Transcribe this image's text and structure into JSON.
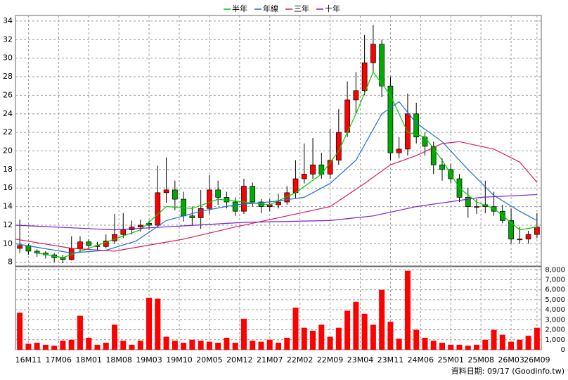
{
  "chart_data": [
    {
      "type": "candlestick",
      "x": [
        -2,
        0,
        2,
        4,
        6,
        8,
        10,
        12,
        14,
        16,
        18,
        20,
        22,
        24,
        26,
        28,
        30,
        32,
        34,
        36,
        38,
        40,
        42,
        44,
        46,
        48,
        50,
        52,
        54,
        56,
        58,
        60,
        62,
        64,
        66,
        68,
        70,
        72,
        74,
        76,
        78,
        80,
        82,
        84,
        86,
        88,
        90,
        92,
        94,
        96,
        98,
        100,
        102,
        104,
        106,
        108,
        110,
        112,
        114,
        116,
        118
      ],
      "open": [
        9.5,
        9.8,
        9.2,
        9.0,
        8.8,
        8.5,
        8.3,
        9.5,
        10.2,
        9.8,
        9.7,
        10.3,
        11.0,
        11.5,
        11.8,
        12.2,
        12.0,
        15.5,
        15.8,
        14.8,
        13.0,
        12.8,
        13.8,
        15.8,
        15.0,
        14.5,
        13.5,
        16.2,
        14.5,
        14.0,
        14.2,
        14.5,
        15.5,
        17.0,
        17.5,
        18.5,
        17.5,
        19.0,
        22.0,
        25.5,
        26.5,
        29.5,
        31.5,
        27.0,
        19.8,
        20.2,
        24.0,
        21.5,
        20.5,
        18.5,
        18.0,
        17.0,
        15.0,
        14.0,
        14.2,
        14.0,
        13.5,
        12.5,
        10.5,
        10.5,
        11.0
      ],
      "high": [
        12.6,
        10.0,
        9.4,
        9.2,
        9.0,
        8.8,
        10.8,
        10.8,
        10.5,
        10.2,
        11.0,
        13.2,
        13.3,
        12.5,
        12.6,
        12.5,
        18.4,
        19.3,
        16.8,
        15.6,
        14.0,
        15.8,
        17.4,
        16.8,
        15.6,
        15.0,
        17.0,
        16.6,
        14.8,
        14.8,
        15.4,
        16.2,
        19.0,
        20.8,
        21.4,
        19.8,
        22.4,
        24.5,
        27.5,
        28.5,
        32.5,
        33.6,
        32.0,
        28.0,
        21.5,
        26.2,
        25.2,
        22.0,
        21.0,
        19.2,
        18.6,
        17.5,
        16.0,
        14.8,
        16.8,
        15.6,
        14.2,
        13.8,
        11.8,
        11.4,
        13.3
      ],
      "low": [
        9.0,
        8.8,
        8.6,
        8.4,
        8.0,
        7.9,
        8.2,
        9.2,
        9.4,
        9.3,
        9.5,
        10.0,
        10.6,
        11.0,
        11.3,
        11.5,
        11.8,
        14.4,
        13.6,
        12.4,
        12.0,
        11.6,
        13.2,
        14.2,
        13.8,
        13.0,
        13.2,
        14.0,
        13.3,
        13.5,
        13.8,
        14.2,
        14.9,
        16.5,
        17.0,
        17.0,
        17.0,
        18.5,
        21.5,
        24.0,
        26.0,
        28.5,
        25.8,
        19.0,
        19.2,
        19.5,
        20.8,
        19.5,
        17.5,
        16.8,
        16.5,
        14.5,
        12.8,
        13.2,
        13.3,
        13.0,
        12.2,
        10.0,
        10.0,
        10.0,
        10.6
      ],
      "close": [
        9.8,
        9.2,
        9.0,
        8.8,
        8.5,
        8.3,
        9.5,
        10.2,
        9.8,
        9.7,
        10.3,
        11.0,
        11.5,
        11.8,
        12.0,
        12.0,
        15.5,
        15.8,
        14.8,
        13.0,
        12.8,
        13.8,
        15.8,
        15.0,
        14.5,
        13.5,
        16.2,
        14.5,
        14.0,
        14.2,
        14.5,
        15.5,
        17.0,
        17.5,
        18.5,
        17.5,
        19.0,
        22.0,
        25.5,
        26.5,
        29.5,
        31.5,
        27.0,
        19.8,
        20.2,
        24.0,
        21.5,
        20.5,
        18.5,
        18.0,
        17.0,
        15.0,
        14.0,
        14.0,
        14.0,
        13.5,
        12.5,
        10.5,
        10.5,
        11.0,
        11.8
      ],
      "up_color": "#ff0000",
      "down_color": "#00aa00",
      "series": [
        {
          "name": "半年",
          "color": "#00cc00",
          "x": [
            2,
            8,
            14,
            20,
            26,
            32,
            38,
            44,
            50,
            56,
            62,
            68,
            72,
            76,
            80,
            84,
            88,
            92,
            96,
            100,
            104,
            108,
            114,
            118
          ],
          "values": [
            9.0,
            8.5,
            9.5,
            10.5,
            11.5,
            14.0,
            13.8,
            14.8,
            14.5,
            14.2,
            15.5,
            17.5,
            20.0,
            24.0,
            28.5,
            26.0,
            22.0,
            21.5,
            19.0,
            16.0,
            14.5,
            13.8,
            11.5,
            11.8
          ]
        },
        {
          "name": "年線",
          "color": "#1e6fd9",
          "x": [
            -3,
            10,
            18,
            25,
            32,
            40,
            48,
            56,
            64,
            70,
            76,
            82,
            86,
            90,
            96,
            102,
            108,
            114,
            118
          ],
          "values": [
            10.0,
            9.0,
            9.3,
            10.3,
            12.5,
            13.5,
            14.2,
            14.5,
            15.0,
            16.5,
            19.0,
            24.0,
            25.3,
            23.0,
            21.0,
            18.0,
            15.2,
            13.5,
            12.5
          ]
        },
        {
          "name": "三年",
          "color": "#d81b5a",
          "x": [
            -3,
            10,
            20,
            36,
            48,
            60,
            70,
            78,
            84,
            90,
            96,
            100,
            108,
            114,
            118
          ],
          "values": [
            10.5,
            9.5,
            9.2,
            10.5,
            11.8,
            13.0,
            14.0,
            16.5,
            18.5,
            19.5,
            20.8,
            21.0,
            20.2,
            18.8,
            16.6
          ]
        },
        {
          "name": "十年",
          "color": "#7a1fd0",
          "x": [
            -3,
            20,
            50,
            70,
            80,
            90,
            105,
            118
          ],
          "values": [
            12.0,
            11.5,
            12.3,
            12.5,
            13.0,
            14.0,
            15.0,
            15.3
          ]
        }
      ],
      "xlim": [
        -3,
        119
      ],
      "xticks": [
        {
          "value": 0,
          "label": "16M11"
        },
        {
          "value": 7,
          "label": "17M06"
        },
        {
          "value": 14,
          "label": "18M01"
        },
        {
          "value": 21,
          "label": "18M08"
        },
        {
          "value": 28,
          "label": "19M03"
        },
        {
          "value": 35,
          "label": "19M10"
        },
        {
          "value": 42,
          "label": "20M05"
        },
        {
          "value": 49,
          "label": "20M12"
        },
        {
          "value": 56,
          "label": "21M07"
        },
        {
          "value": 63,
          "label": "22M02"
        },
        {
          "value": 70,
          "label": "22M09"
        },
        {
          "value": 77,
          "label": "23M04"
        },
        {
          "value": 84,
          "label": "23M11"
        },
        {
          "value": 91,
          "label": "24M06"
        },
        {
          "value": 98,
          "label": "25M01"
        },
        {
          "value": 105,
          "label": "25M08"
        },
        {
          "value": 112,
          "label": "26M03"
        },
        {
          "value": 118,
          "label": "26M09"
        }
      ],
      "ylim": [
        7.6,
        34.6
      ],
      "yticks": [
        8,
        10,
        12,
        14,
        16,
        18,
        20,
        22,
        24,
        26,
        28,
        30,
        32,
        34
      ],
      "grid": true
    },
    {
      "type": "bar",
      "x": [
        -2,
        0,
        2,
        4,
        6,
        8,
        10,
        12,
        14,
        16,
        18,
        20,
        22,
        24,
        26,
        28,
        30,
        32,
        34,
        36,
        38,
        40,
        42,
        44,
        46,
        48,
        50,
        52,
        54,
        56,
        58,
        60,
        62,
        64,
        66,
        68,
        70,
        72,
        74,
        76,
        78,
        80,
        82,
        84,
        86,
        88,
        90,
        92,
        94,
        96,
        98,
        100,
        102,
        104,
        106,
        108,
        110,
        112,
        114,
        116,
        118
      ],
      "values": [
        3700,
        600,
        700,
        500,
        400,
        900,
        1000,
        3400,
        1200,
        500,
        700,
        2500,
        900,
        500,
        900,
        5200,
        5100,
        1300,
        900,
        700,
        1000,
        900,
        800,
        700,
        1200,
        700,
        3100,
        900,
        800,
        1000,
        700,
        1200,
        4200,
        2200,
        1900,
        2500,
        1300,
        2200,
        3900,
        4800,
        3600,
        2500,
        6000,
        2800,
        1100,
        7900,
        2000,
        1200,
        900,
        700,
        500,
        500,
        400,
        500,
        1000,
        2000,
        1500,
        800,
        1000,
        1400,
        2200
      ],
      "color": "#ff0000",
      "xlim": [
        -3,
        119
      ],
      "ylim": [
        0,
        8300
      ],
      "yticks": [
        0,
        {
          "value": 1000,
          "label": "1,000"
        },
        {
          "value": 2000,
          "label": "2,000"
        },
        {
          "value": 3000,
          "label": "3,000"
        },
        {
          "value": 4000,
          "label": "4,000"
        },
        {
          "value": 5000,
          "label": "5,000"
        },
        {
          "value": 6000,
          "label": "6,000"
        },
        {
          "value": 7000,
          "label": "7,000"
        },
        {
          "value": 8000,
          "label": "8,000"
        }
      ],
      "grid": true
    }
  ],
  "source_note": "資料日期: 09/17 (Goodinfo.tw)"
}
